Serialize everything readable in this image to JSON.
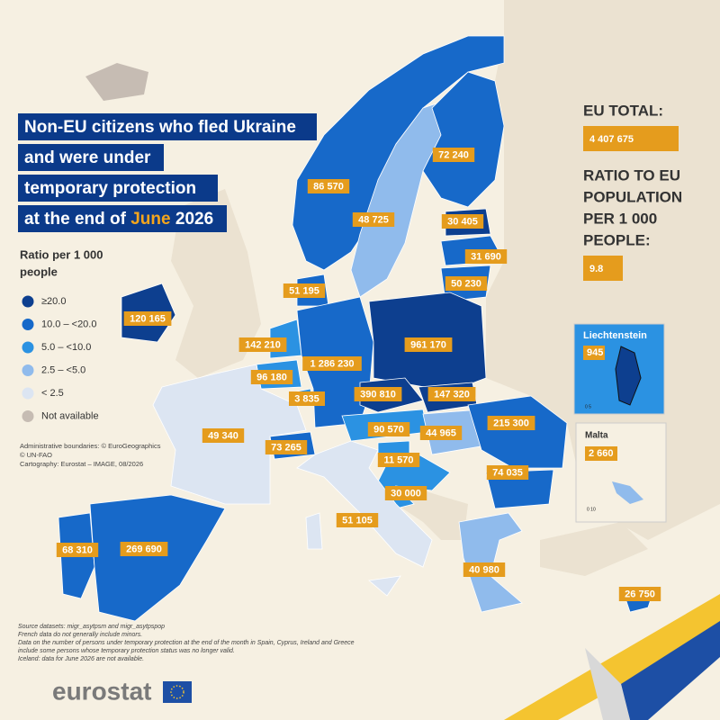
{
  "title": {
    "lines": [
      "Non-EU citizens who fled Ukraine",
      "and were under",
      "temporary protection"
    ],
    "last_line": [
      "at the end of ",
      "June",
      " 2026"
    ]
  },
  "eu_total": {
    "label": "EU TOTAL:",
    "value": "4 407 675"
  },
  "ratio": {
    "label_lines": [
      "RATIO TO EU",
      "POPULATION",
      "PER 1 000",
      "PEOPLE:"
    ],
    "value": "9.8"
  },
  "legend": {
    "title_lines": [
      "Ratio per 1 000",
      "people"
    ],
    "items": [
      {
        "label": "≥20.0",
        "color": "#0d3f8f"
      },
      {
        "label": "10.0 – <20.0",
        "color": "#1769c9"
      },
      {
        "label": "5.0 – <10.0",
        "color": "#2b92e2"
      },
      {
        "label": "2.5 – <5.0",
        "color": "#90bbec"
      },
      {
        "label": "< 2.5",
        "color": "#dce5f2"
      },
      {
        "label": "Not available",
        "color": "#c6bcb3"
      }
    ]
  },
  "countries": [
    {
      "value": "86 570",
      "color": "#1769c9"
    },
    {
      "value": "48 725",
      "color": "#90bbec"
    },
    {
      "value": "72 240",
      "color": "#1769c9"
    },
    {
      "value": "30 405",
      "color": "#0d3f8f"
    },
    {
      "value": "31 690",
      "color": "#1769c9"
    },
    {
      "value": "50 230",
      "color": "#1769c9"
    },
    {
      "value": "51 195",
      "color": "#1769c9"
    },
    {
      "value": "120 165",
      "color": "#0d3f8f"
    },
    {
      "value": "142 210",
      "color": "#2b92e2"
    },
    {
      "value": "96 180",
      "color": "#2b92e2"
    },
    {
      "value": "3 835",
      "color": "#2b92e2"
    },
    {
      "value": "1 286 230",
      "color": "#1769c9"
    },
    {
      "value": "961 170",
      "color": "#0d3f8f"
    },
    {
      "value": "390 810",
      "color": "#0d3f8f"
    },
    {
      "value": "147 320",
      "color": "#0d3f8f"
    },
    {
      "value": "49 340",
      "color": "#dce5f2"
    },
    {
      "value": "73 265",
      "color": "#1769c9"
    },
    {
      "value": "90 570",
      "color": "#2b92e2"
    },
    {
      "value": "44 965",
      "color": "#90bbec"
    },
    {
      "value": "215 300",
      "color": "#1769c9"
    },
    {
      "value": "11 570",
      "color": "#2b92e2"
    },
    {
      "value": "30 000",
      "color": "#2b92e2"
    },
    {
      "value": "74 035",
      "color": "#1769c9"
    },
    {
      "value": "51 105",
      "color": "#dce5f2"
    },
    {
      "value": "68 310",
      "color": "#1769c9"
    },
    {
      "value": "269 690",
      "color": "#1769c9"
    },
    {
      "value": "40 980",
      "color": "#90bbec"
    },
    {
      "value": "26 750",
      "color": "#1769c9"
    }
  ],
  "insets": [
    {
      "name": "Liechtenstein",
      "value": "945",
      "scale": "0  5"
    },
    {
      "name": "Malta",
      "value": "2 660",
      "scale": "0  10"
    }
  ],
  "credits": [
    "Administrative boundaries: © EuroGeographics",
    "© UN-FAO",
    "Cartography: Eurostat – IMAGE, 08/2026"
  ],
  "sources": [
    "Source datasets: migr_asytpsm and migr_asytpspop",
    "French data do not generally include minors.",
    "Data on the number of persons under temporary protection at the end of the month in Spain, Cyprus, Ireland and Greece",
    "include some persons whose temporary protection status was no longer valid.",
    "Iceland: data for June 2026 are not available."
  ],
  "logo": "eurostat"
}
